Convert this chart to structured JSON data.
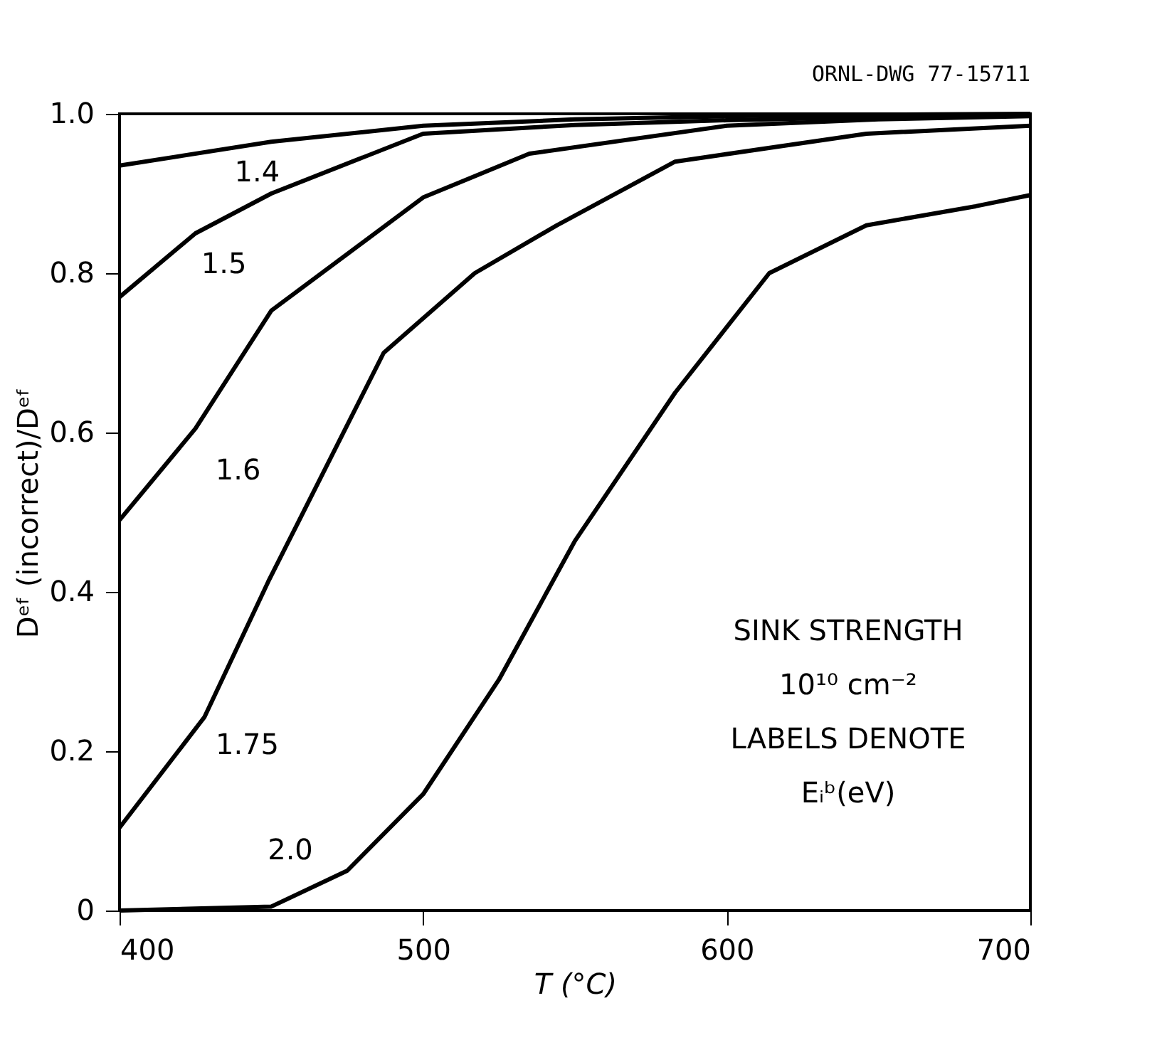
{
  "chart_data": {
    "type": "line",
    "xlabel": "T (°C)",
    "ylabel": "Dᵉᶠ (incorrect)/Dᵉᶠ",
    "xlim": [
      400,
      700
    ],
    "xticks": [
      400,
      500,
      600,
      700
    ],
    "ylim": [
      0,
      1
    ],
    "yticks": [
      0,
      0.2,
      0.4,
      0.6,
      0.8,
      {
        "value": 1,
        "label": "1.0"
      }
    ],
    "grid": false,
    "marker": "none",
    "line_style": "solid",
    "series": [
      {
        "name": "1.4",
        "color": "#000000",
        "x": [
          400,
          450,
          500,
          550,
          600,
          650,
          700
        ],
        "values": [
          0.935,
          0.965,
          0.985,
          0.993,
          0.997,
          0.999,
          1.0
        ]
      },
      {
        "name": "1.5",
        "color": "#000000",
        "x": [
          400,
          425,
          450,
          500,
          550,
          600,
          650,
          700
        ],
        "values": [
          0.77,
          0.85,
          0.9,
          0.975,
          0.986,
          0.992,
          0.996,
          0.998
        ]
      },
      {
        "name": "1.6",
        "color": "#000000",
        "x": [
          400,
          425,
          450,
          500,
          535,
          600,
          650,
          700
        ],
        "values": [
          0.49,
          0.605,
          0.753,
          0.895,
          0.95,
          0.985,
          0.993,
          0.997
        ]
      },
      {
        "name": "1.75",
        "color": "#000000",
        "x": [
          400,
          428,
          449,
          458,
          487,
          517,
          544,
          583,
          646,
          700
        ],
        "values": [
          0.104,
          0.243,
          0.413,
          0.481,
          0.7,
          0.8,
          0.86,
          0.94,
          0.975,
          0.985
        ]
      },
      {
        "name": "2.0",
        "color": "#000000",
        "x": [
          400,
          450,
          475,
          500,
          525,
          550,
          583,
          614,
          646,
          682,
          700
        ],
        "values": [
          0,
          0.005,
          0.05,
          0.146,
          0.29,
          0.464,
          0.65,
          0.8,
          0.86,
          0.884,
          0.898
        ]
      }
    ],
    "annotations": [
      "SINK STRENGTH",
      "10¹⁰ cm⁻²",
      "LABELS DENOTE",
      "Eᵢᵇ(eV)",
      "ORNL-DWG 77-15711"
    ]
  }
}
